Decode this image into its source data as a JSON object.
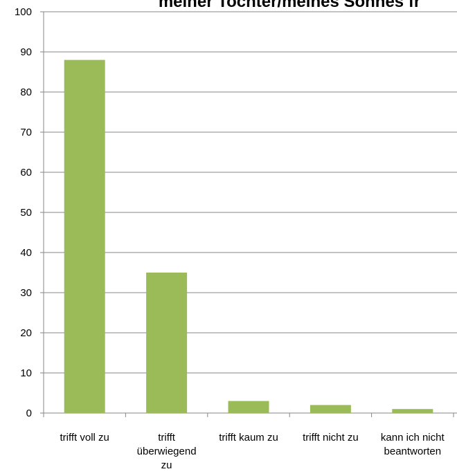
{
  "chart_data": {
    "type": "bar",
    "title": "meiner Tochter/meines Sohnes fr",
    "categories": [
      [
        "trifft voll zu"
      ],
      [
        "trifft",
        "überwiegend",
        "zu"
      ],
      [
        "trifft kaum zu"
      ],
      [
        "trifft nicht zu"
      ],
      [
        "kann ich nicht",
        "beantworten"
      ]
    ],
    "values": [
      88,
      35,
      3,
      2,
      1
    ],
    "ylim": [
      0,
      100
    ],
    "yticks": [
      0,
      10,
      20,
      30,
      40,
      50,
      60,
      70,
      80,
      90,
      100
    ],
    "grid": true,
    "bar_color": "#9bbb59"
  }
}
